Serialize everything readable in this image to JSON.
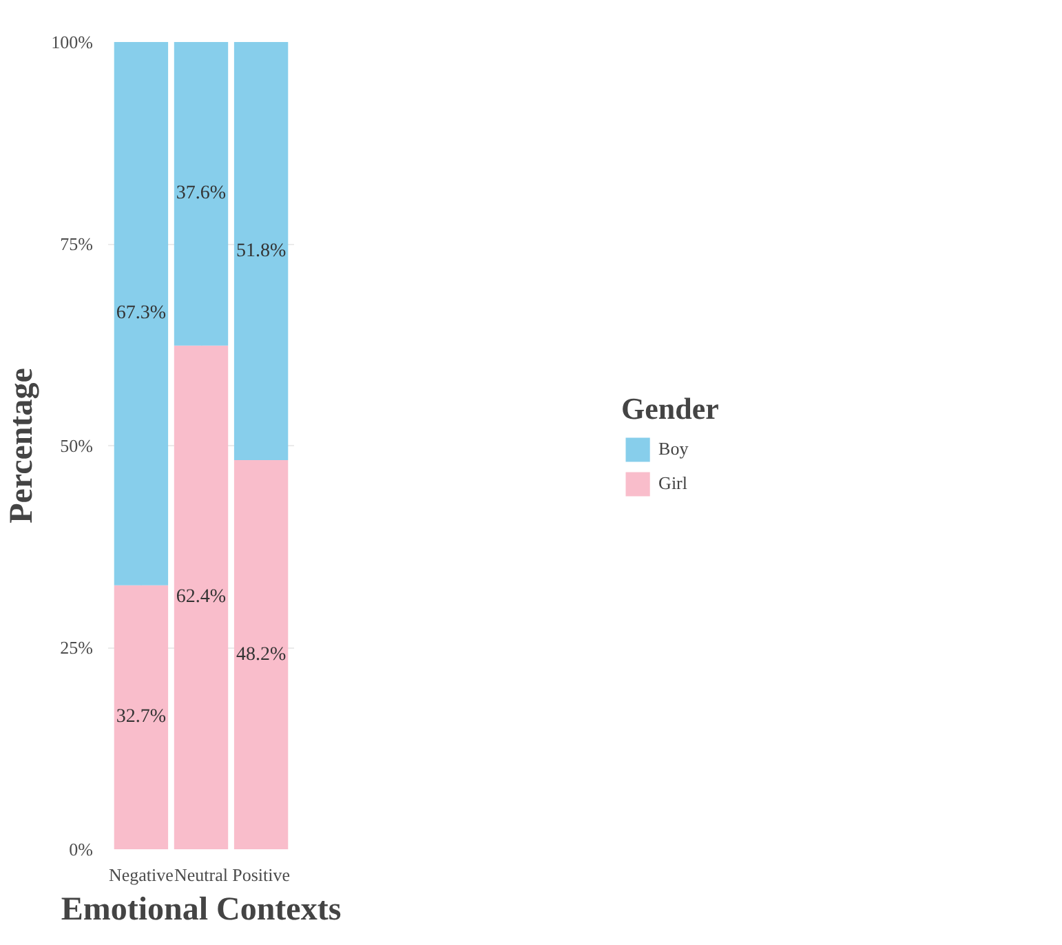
{
  "chart_data": {
    "type": "bar",
    "stacked": true,
    "xlabel": "Emotional Contexts",
    "ylabel": "Percentage",
    "legend_title": "Gender",
    "legend": "right",
    "grid": true,
    "categories": [
      "Negative",
      "Neutral",
      "Positive"
    ],
    "ylim": [
      0,
      100
    ],
    "yticks": [
      {
        "value": 0,
        "label": "0%"
      },
      {
        "value": 25,
        "label": "25%"
      },
      {
        "value": 50,
        "label": "50%"
      },
      {
        "value": 75,
        "label": "75%"
      },
      {
        "value": 100,
        "label": "100%"
      }
    ],
    "series": [
      {
        "name": "Girl",
        "color": "#f9bdcb",
        "values": [
          32.7,
          62.4,
          48.2
        ],
        "value_labels": [
          "32.7%",
          "62.4%",
          "48.2%"
        ]
      },
      {
        "name": "Boy",
        "color": "#87ceeb",
        "values": [
          67.3,
          37.6,
          51.8
        ],
        "value_labels": [
          "67.3%",
          "37.6%",
          "51.8%"
        ]
      }
    ]
  }
}
